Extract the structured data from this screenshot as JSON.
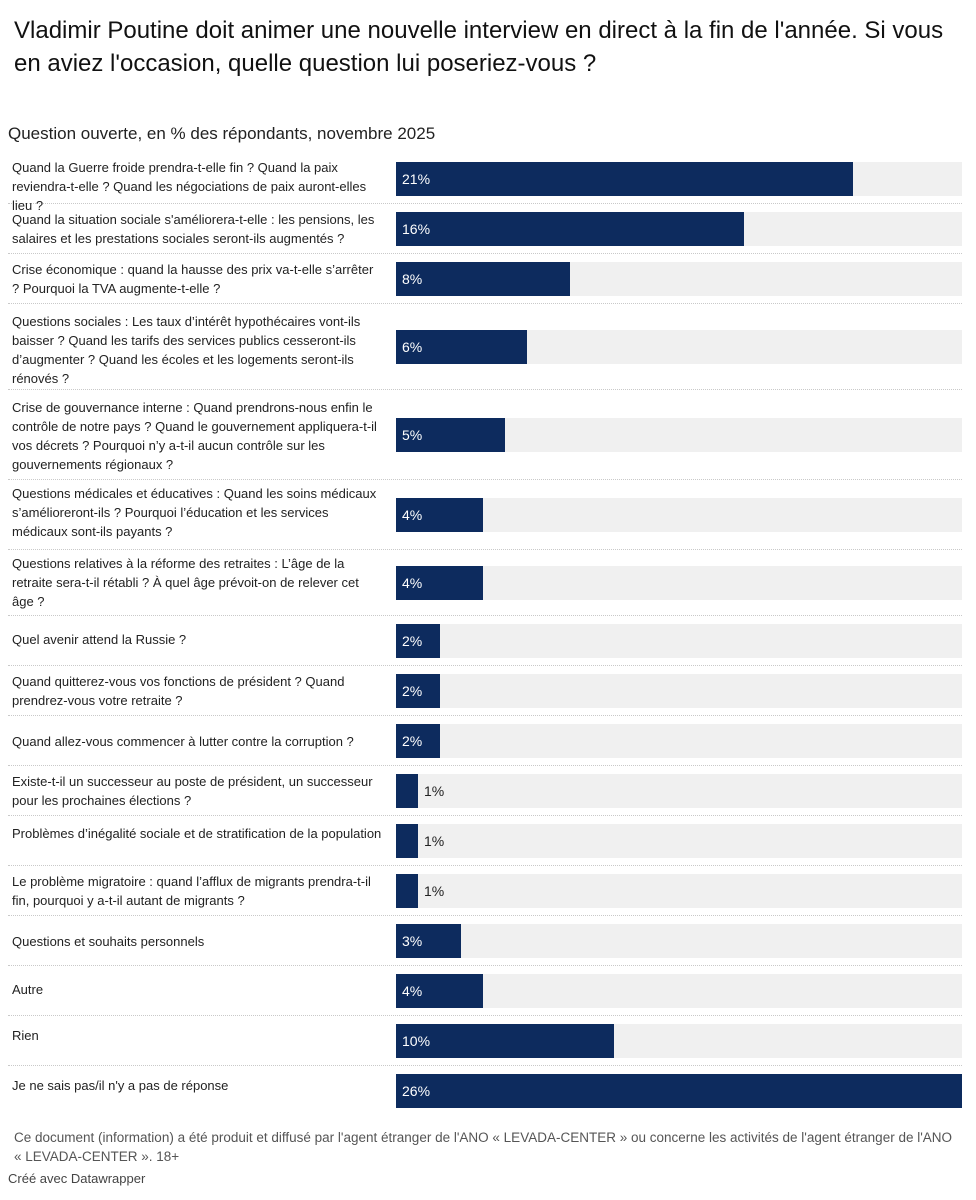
{
  "title": "Vladimir Poutine doit animer une nouvelle interview en direct à la fin de l'année. Si vous en aviez l'occasion, quelle question lui poseriez-vous ?",
  "subtitle": "Question ouverte, en % des répondants, novembre 2025",
  "note": "Ce document (information) a été produit et diffusé par l'agent étranger de l'ANO « LEVADA-CENTER » ou concerne les activités de l'agent étranger de l'ANO « LEVADA-CENTER ». 18+",
  "credit": "Créé avec Datawrapper",
  "colors": {
    "bar": "#0d2b5e",
    "track": "#f0f0f0"
  },
  "chart_data": {
    "type": "bar",
    "orientation": "horizontal",
    "title": "Vladimir Poutine doit animer une nouvelle interview en direct à la fin de l'année. Si vous en aviez l'occasion, quelle question lui poseriez-vous ?",
    "subtitle": "Question ouverte, en % des répondants, novembre 2025",
    "unit": "%",
    "xlim": [
      0,
      26
    ],
    "categories": [
      "Quand la Guerre froide prendra-t-elle fin ? Quand la paix reviendra-t-elle ? Quand les négociations de paix auront-elles lieu ?",
      "Quand la situation sociale s'améliorera-t-elle : les pensions, les salaires et les prestations sociales seront-ils augmentés ?",
      "Crise économique : quand la hausse des prix va-t-elle s’arrêter ? Pourquoi la TVA augmente-t-elle ?",
      "Questions sociales : Les taux d’intérêt hypothécaires vont-ils baisser ? Quand les tarifs des services publics cesseront-ils d’augmenter ? Quand les écoles et les logements seront-ils rénovés ?",
      "Crise de gouvernance interne : Quand prendrons-nous enfin le contrôle de notre pays ? Quand le gouvernement appliquera-t-il vos décrets ? Pourquoi n’y a-t-il aucun contrôle sur les gouvernements régionaux ?",
      "Questions médicales et éducatives : Quand les soins médicaux s’amélioreront-ils ? Pourquoi l’éducation et les services médicaux sont-ils payants ?",
      "Questions relatives à la réforme des retraites : L’âge de la retraite sera-t-il rétabli ? À quel âge prévoit-on de relever cet âge ?",
      "Quel avenir attend la Russie ?",
      "Quand quitterez-vous vos fonctions de président ? Quand prendrez-vous votre retraite ?",
      "Quand allez-vous commencer à lutter contre la corruption ?",
      "Existe-t-il un successeur au poste de président, un successeur pour les prochaines élections ?",
      "Problèmes d’inégalité sociale et de stratification de la population",
      "Le problème migratoire : quand l’afflux de migrants prendra-t-il fin, pourquoi y a-t-il autant de migrants ?",
      "Questions et souhaits personnels",
      "Autre",
      "Rien",
      "Je ne sais pas/il n'y a pas de réponse"
    ],
    "values": [
      21,
      16,
      8,
      6,
      5,
      4,
      4,
      2,
      2,
      2,
      1,
      1,
      1,
      3,
      4,
      10,
      26
    ],
    "value_labels": [
      "21%",
      "16%",
      "8%",
      "6%",
      "5%",
      "4%",
      "4%",
      "2%",
      "2%",
      "2%",
      "1%",
      "1%",
      "1%",
      "3%",
      "4%",
      "10%",
      "26%"
    ]
  }
}
